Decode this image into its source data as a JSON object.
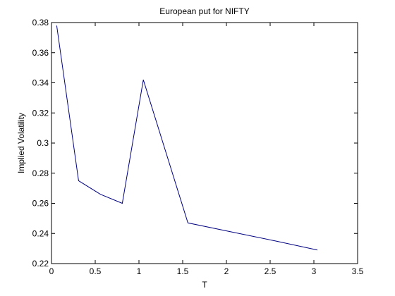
{
  "chart_data": {
    "type": "line",
    "title": "European put for NIFTY",
    "xlabel": "T",
    "ylabel": "Implied Volatility",
    "xlim": [
      0,
      3.5
    ],
    "ylim": [
      0.22,
      0.38
    ],
    "xticks": [
      0,
      0.5,
      1,
      1.5,
      2,
      2.5,
      3,
      3.5
    ],
    "xtick_labels": [
      "0",
      "0.5",
      "1",
      "1.5",
      "2",
      "2.5",
      "3",
      "3.5"
    ],
    "yticks": [
      0.22,
      0.24,
      0.26,
      0.28,
      0.3,
      0.32,
      0.34,
      0.36,
      0.38
    ],
    "ytick_labels": [
      "0.22",
      "0.24",
      "0.26",
      "0.28",
      "0.3",
      "0.32",
      "0.34",
      "0.36",
      "0.38"
    ],
    "grid": false,
    "series": [
      {
        "color": "#000080",
        "x": [
          0.06,
          0.31,
          0.56,
          0.81,
          1.05,
          1.56,
          2.06,
          2.56,
          3.04
        ],
        "y": [
          0.378,
          0.275,
          0.266,
          0.26,
          0.342,
          0.247,
          0.241,
          0.235,
          0.229
        ]
      }
    ]
  }
}
